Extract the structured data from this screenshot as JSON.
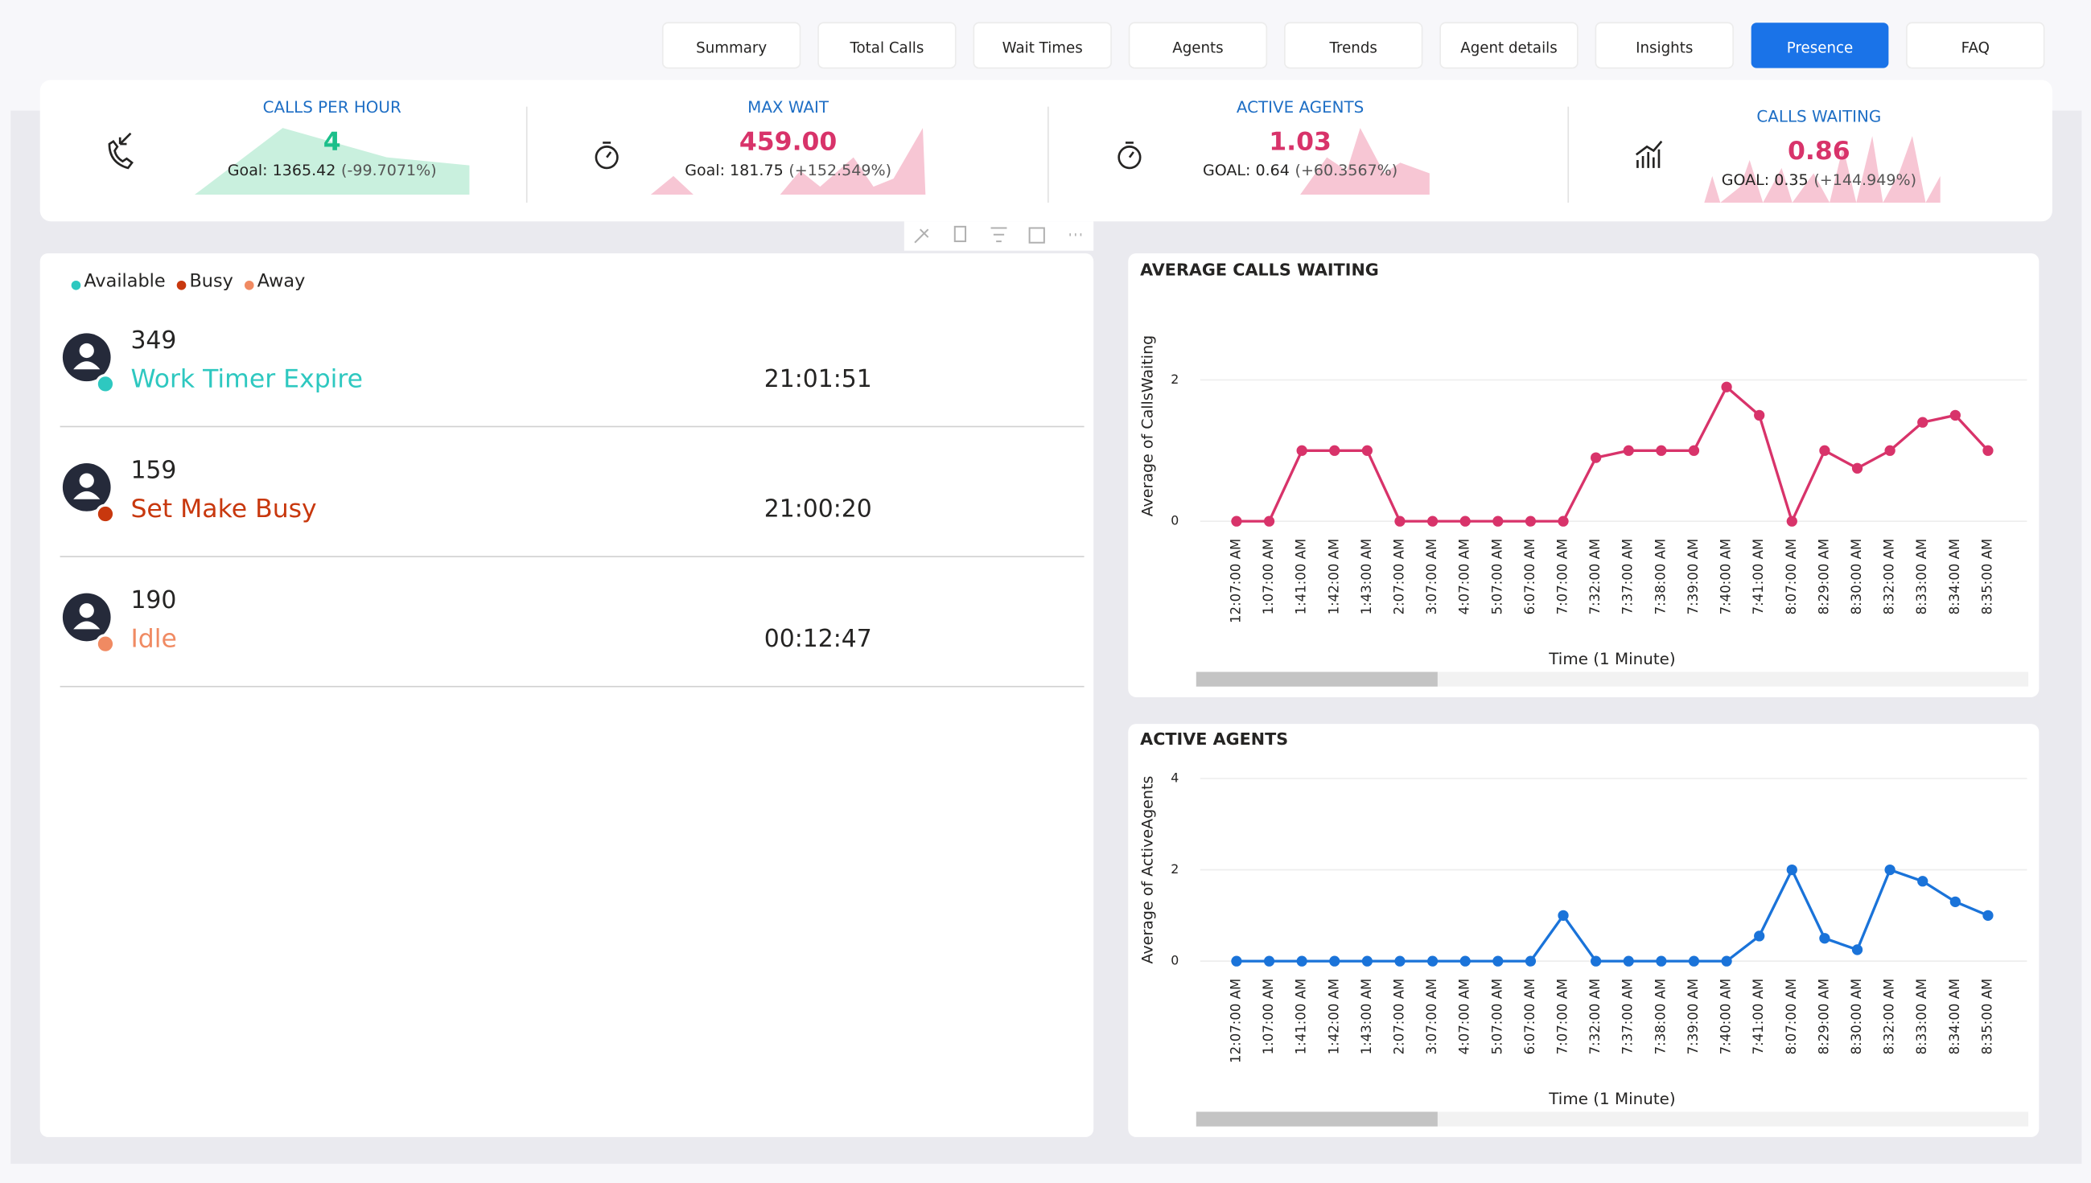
{
  "tabs": [
    "Summary",
    "Total Calls",
    "Wait Times",
    "Agents",
    "Trends",
    "Agent details",
    "Insights",
    "Presence",
    "FAQ"
  ],
  "active_tab": "Presence",
  "kpis": [
    {
      "title": "CALLS PER HOUR",
      "value": "4",
      "goal": "Goal: 1365.42",
      "change": "(-99.7071%)",
      "color": "#1bbf8a"
    },
    {
      "title": "MAX WAIT",
      "value": "459.00",
      "goal": "Goal: 181.75",
      "change": "(+152.549%)",
      "color": "#d8336a"
    },
    {
      "title": "ACTIVE AGENTS",
      "value": "1.03",
      "goal": "GOAL: 0.64",
      "change": "(+60.3567%)",
      "color": "#d8336a"
    },
    {
      "title": "CALLS WAITING",
      "value": "0.86",
      "goal": "GOAL: 0.35",
      "change": "(+144.949%)",
      "color": "#d8336a"
    }
  ],
  "legend": [
    {
      "name": "Available",
      "color": "#2ec8c0"
    },
    {
      "name": "Busy",
      "color": "#c8380e"
    },
    {
      "name": "Away",
      "color": "#f08a62"
    }
  ],
  "agents": [
    {
      "id": "349",
      "status": "Work Timer Expire",
      "time": "21:01:51",
      "color": "#2ec8c0"
    },
    {
      "id": "159",
      "status": "Set Make Busy",
      "time": "21:00:20",
      "color": "#c8380e"
    },
    {
      "id": "190",
      "status": "Idle",
      "time": "00:12:47",
      "color": "#f08a62"
    }
  ],
  "chart_data": [
    {
      "type": "line",
      "title": "AVERAGE CALLS WAITING",
      "y_label": "Average of CallsWaiting",
      "x_label": "Time (1 Minute)",
      "categories": [
        "12:07:00 AM",
        "1:07:00 AM",
        "1:41:00 AM",
        "1:42:00 AM",
        "1:43:00 AM",
        "2:07:00 AM",
        "3:07:00 AM",
        "4:07:00 AM",
        "5:07:00 AM",
        "6:07:00 AM",
        "7:07:00 AM",
        "7:32:00 AM",
        "7:37:00 AM",
        "7:38:00 AM",
        "7:39:00 AM",
        "7:40:00 AM",
        "7:41:00 AM",
        "8:07:00 AM",
        "8:29:00 AM",
        "8:30:00 AM",
        "8:32:00 AM",
        "8:33:00 AM",
        "8:34:00 AM",
        "8:35:00 AM"
      ],
      "values": [
        0,
        0,
        1,
        1,
        1,
        0,
        0,
        0,
        0,
        0,
        0,
        0.9,
        1,
        1,
        1,
        1.9,
        1.5,
        0,
        1,
        0.75,
        1,
        1.4,
        1.5,
        1
      ],
      "color": "#d8336a",
      "ylim": [
        0,
        2.7
      ],
      "yticks": [
        0,
        2
      ],
      "grid": true
    },
    {
      "type": "line",
      "title": "ACTIVE AGENTS",
      "y_label": "Average of ActiveAgents",
      "x_label": "Time (1 Minute)",
      "categories": [
        "12:07:00 AM",
        "1:07:00 AM",
        "1:41:00 AM",
        "1:42:00 AM",
        "1:43:00 AM",
        "2:07:00 AM",
        "3:07:00 AM",
        "4:07:00 AM",
        "5:07:00 AM",
        "6:07:00 AM",
        "7:07:00 AM",
        "7:32:00 AM",
        "7:37:00 AM",
        "7:38:00 AM",
        "7:39:00 AM",
        "7:40:00 AM",
        "7:41:00 AM",
        "8:07:00 AM",
        "8:29:00 AM",
        "8:30:00 AM",
        "8:32:00 AM",
        "8:33:00 AM",
        "8:34:00 AM",
        "8:35:00 AM"
      ],
      "values": [
        0,
        0,
        0,
        0,
        0,
        0,
        0,
        0,
        0,
        0,
        1,
        0,
        0,
        0,
        0,
        0,
        0.55,
        2,
        0.5,
        0.25,
        2,
        1.75,
        1.3,
        1
      ],
      "color": "#1a73d9",
      "ylim": [
        0,
        4
      ],
      "yticks": [
        0,
        2,
        4
      ],
      "grid": true
    }
  ]
}
